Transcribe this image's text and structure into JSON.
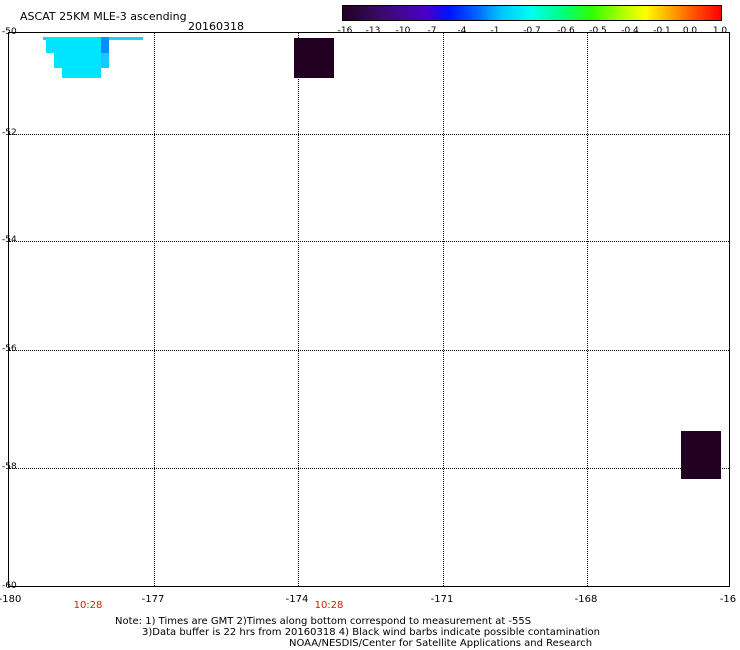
{
  "header": {
    "title": "ASCAT 25KM MLE-3 ascending",
    "date": "20160318"
  },
  "colorbar": {
    "labels": [
      "-16",
      "-13",
      "-10",
      "-7",
      "-4",
      "-1",
      "-0.7",
      "-0.6",
      "-0.5",
      "-0.4",
      "-0.1",
      "0.0",
      "1.0"
    ]
  },
  "axes": {
    "y_ticks": [
      "-50",
      "-52",
      "-54",
      "-56",
      "-58",
      "-60"
    ],
    "x_ticks": [
      "-180",
      "-177",
      "-174",
      "-171",
      "-168",
      "-16"
    ],
    "times": [
      "10:28",
      "10:28"
    ],
    "lon_range": [
      -180,
      -165
    ],
    "lat_range": [
      -50,
      -60
    ]
  },
  "map": {
    "features": [
      "cyan-swath-patch",
      "dark-pixel-block",
      "dark-pixel-block"
    ]
  },
  "notes": {
    "line1": "Note: 1) Times are GMT 2)Times along bottom correspond to measurement at -55S",
    "line2": "3)Data buffer is 22 hrs from 20160318 4) Black wind barbs indicate possible contamination",
    "line3": "NOAA/NESDIS/Center for Satellite Applications and Research"
  },
  "colors": {
    "cyan": "#00e5ff",
    "blue": "#0090ff",
    "dark": "#220022",
    "time_red": "#cc2200"
  }
}
